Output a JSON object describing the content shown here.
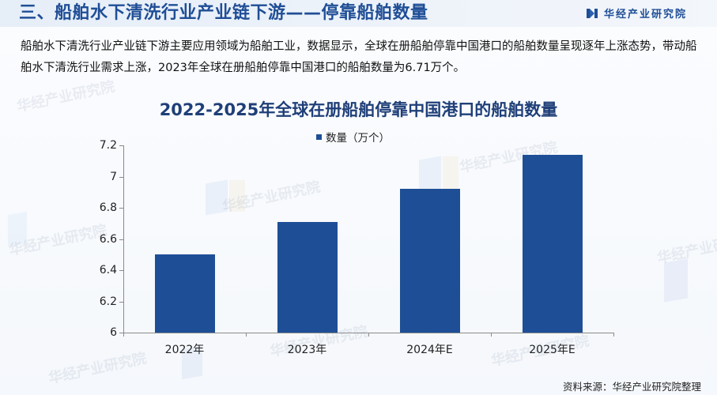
{
  "header": {
    "title": "三、船舶水下清洗行业产业链下游——停靠船舶数量",
    "brand_name": "华经产业研究院",
    "brand_color": "#1f4e96"
  },
  "body_text": "船舶水下清洗行业产业链下游主要应用领域为船舶工业，数据显示，全球在册船舶停靠中国港口的船舶数量呈现逐年上涨态势，带动船舶水下清洗行业需求上涨，2023年全球在册船舶停靠中国港口的船舶数量为6.71万个。",
  "watermark_text": "华经产业研究院",
  "source": "资料来源：华经产业研究院整理",
  "chart_data": {
    "type": "bar",
    "title": "2022-2025年全球在册船舶停靠中国港口的船舶数量",
    "categories": [
      "2022年",
      "2023年",
      "2024年E",
      "2025年E"
    ],
    "series": [
      {
        "name": "数量（万个）",
        "values": [
          6.5,
          6.71,
          6.92,
          7.14
        ],
        "color": "#1e4f96"
      }
    ],
    "xlabel": "",
    "ylabel": "",
    "ylim": [
      6,
      7.2
    ],
    "yticks": [
      "7.2",
      "7",
      "6.8",
      "6.6",
      "6.4",
      "6.2",
      "6"
    ],
    "grid": false,
    "legend_position": "top-center"
  }
}
